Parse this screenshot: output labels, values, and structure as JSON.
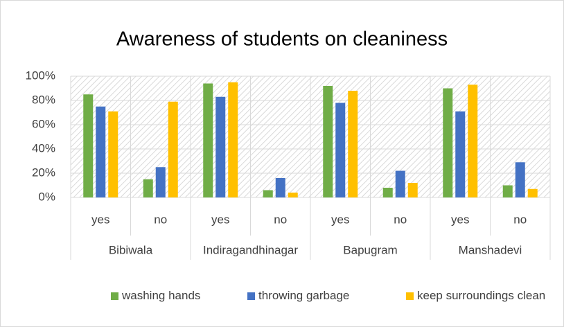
{
  "chart_data": {
    "type": "bar",
    "title": "Awareness of students on cleaniness",
    "categories": [
      "yes",
      "no",
      "yes",
      "no",
      "yes",
      "no",
      "yes",
      "no"
    ],
    "groups": [
      "Bibiwala",
      "Indiragandhinagar",
      "Bapugram",
      "Manshadevi"
    ],
    "series": [
      {
        "name": "washing hands",
        "color": "#70ad47",
        "values": [
          85,
          15,
          94,
          6,
          92,
          8,
          90,
          10
        ]
      },
      {
        "name": "throwing garbage",
        "color": "#4472c4",
        "values": [
          75,
          25,
          83,
          16,
          78,
          22,
          71,
          29
        ]
      },
      {
        "name": "keep surroundings clean",
        "color": "#ffc000",
        "values": [
          71,
          79,
          95,
          4,
          88,
          12,
          93,
          7
        ]
      }
    ],
    "ylim": [
      0,
      100
    ],
    "yticks": [
      {
        "value": 0,
        "label": "0%"
      },
      {
        "value": 20,
        "label": "20%"
      },
      {
        "value": 40,
        "label": "40%"
      },
      {
        "value": 60,
        "label": "60%"
      },
      {
        "value": 80,
        "label": "80%"
      },
      {
        "value": 100,
        "label": "100%"
      }
    ],
    "grid": true,
    "legend": "bottom"
  }
}
